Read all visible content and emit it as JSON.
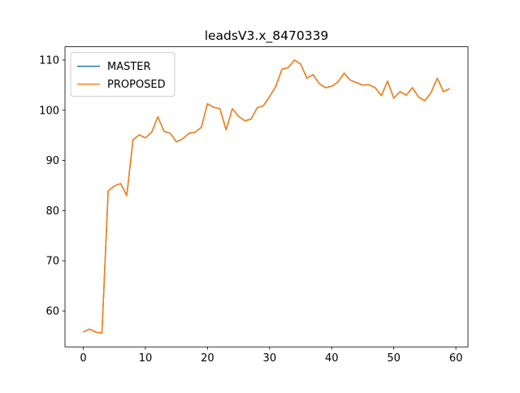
{
  "chart_data": {
    "type": "line",
    "title": "leadsV3.x_8470339",
    "x": [
      0,
      1,
      2,
      3,
      4,
      5,
      6,
      7,
      8,
      9,
      10,
      11,
      12,
      13,
      14,
      15,
      16,
      17,
      18,
      19,
      20,
      21,
      22,
      23,
      24,
      25,
      26,
      27,
      28,
      29,
      30,
      31,
      32,
      33,
      34,
      35,
      36,
      37,
      38,
      39,
      40,
      41,
      42,
      43,
      44,
      45,
      46,
      47,
      48,
      49,
      50,
      51,
      52,
      53,
      54,
      55,
      56,
      57,
      58,
      59
    ],
    "series": [
      {
        "name": "MASTER",
        "color": "#1f77b4",
        "values": [
          55.8,
          56.4,
          55.8,
          55.6,
          83.9,
          84.9,
          85.4,
          83.0,
          94.1,
          95.1,
          94.5,
          95.6,
          98.7,
          95.8,
          95.4,
          93.7,
          94.3,
          95.4,
          95.6,
          96.6,
          101.3,
          100.6,
          100.3,
          96.1,
          100.3,
          98.8,
          97.9,
          98.2,
          100.5,
          100.9,
          102.7,
          104.8,
          108.2,
          108.5,
          110.0,
          109.2,
          106.4,
          107.1,
          105.3,
          104.5,
          104.8,
          105.6,
          107.4,
          106.0,
          105.5,
          105.0,
          105.1,
          104.5,
          102.9,
          105.8,
          102.4,
          103.7,
          103.0,
          104.5,
          102.6,
          101.9,
          103.5,
          106.4,
          103.7,
          104.3
        ]
      },
      {
        "name": "PROPOSED",
        "color": "#ff7f0e",
        "values": [
          55.8,
          56.4,
          55.8,
          55.6,
          83.9,
          84.9,
          85.4,
          83.0,
          94.1,
          95.1,
          94.5,
          95.6,
          98.7,
          95.8,
          95.4,
          93.7,
          94.3,
          95.4,
          95.6,
          96.6,
          101.3,
          100.6,
          100.3,
          96.1,
          100.3,
          98.8,
          97.9,
          98.2,
          100.5,
          100.9,
          102.7,
          104.8,
          108.2,
          108.5,
          110.0,
          109.2,
          106.4,
          107.1,
          105.3,
          104.5,
          104.8,
          105.6,
          107.4,
          106.0,
          105.5,
          105.0,
          105.1,
          104.5,
          102.9,
          105.8,
          102.4,
          103.7,
          103.0,
          104.5,
          102.6,
          101.9,
          103.5,
          106.4,
          103.7,
          104.3
        ]
      }
    ],
    "xlim": [
      -2.95,
      61.95
    ],
    "ylim": [
      52.85,
      112.65
    ],
    "xticks": [
      0,
      10,
      20,
      30,
      40,
      50,
      60
    ],
    "yticks": [
      60,
      70,
      80,
      90,
      100,
      110
    ],
    "legend": "upper left",
    "grid": false
  }
}
